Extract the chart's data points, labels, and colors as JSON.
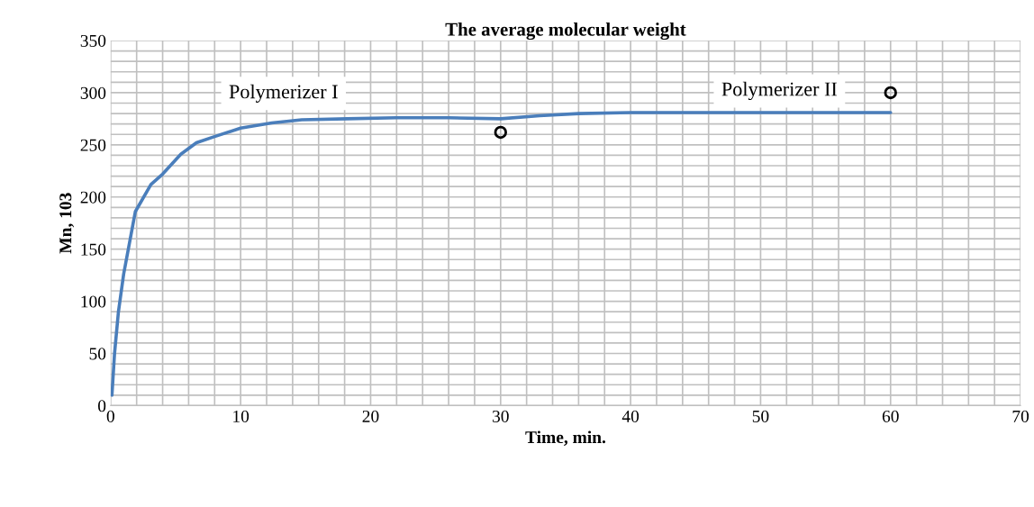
{
  "chart_data": {
    "type": "line",
    "title": "The average molecular weight",
    "xlabel": "Time, min.",
    "ylabel": "Mn, 103",
    "annotations": [
      "Polymerizer I",
      "Polymerizer II"
    ],
    "xlim": [
      0,
      70
    ],
    "xticks": [
      0,
      10,
      20,
      30,
      40,
      50,
      60,
      70
    ],
    "ylim": [
      0,
      350
    ],
    "yticks": [
      0,
      50,
      100,
      150,
      200,
      250,
      300,
      350
    ],
    "grid": true,
    "legend": false,
    "series": [
      {
        "color": "#4a7ebb",
        "marker": "none",
        "x": [
          0.1,
          0.3,
          0.6,
          1.0,
          1.9,
          3.1,
          4.0,
          5.4,
          6.6,
          8.0,
          10.0,
          12.4,
          14.7,
          18.2,
          22,
          26,
          30,
          33,
          36,
          40,
          45,
          50,
          55,
          60
        ],
        "values": [
          10,
          50,
          90,
          126,
          186,
          212,
          222,
          241,
          252,
          258,
          266,
          271,
          274,
          275,
          276,
          276,
          275,
          278,
          280,
          281,
          281,
          281,
          281,
          281
        ]
      },
      {
        "type": "scatter",
        "color": "#000000",
        "marker": "circle",
        "x": [
          30,
          60
        ],
        "values": [
          262,
          300
        ]
      }
    ]
  }
}
